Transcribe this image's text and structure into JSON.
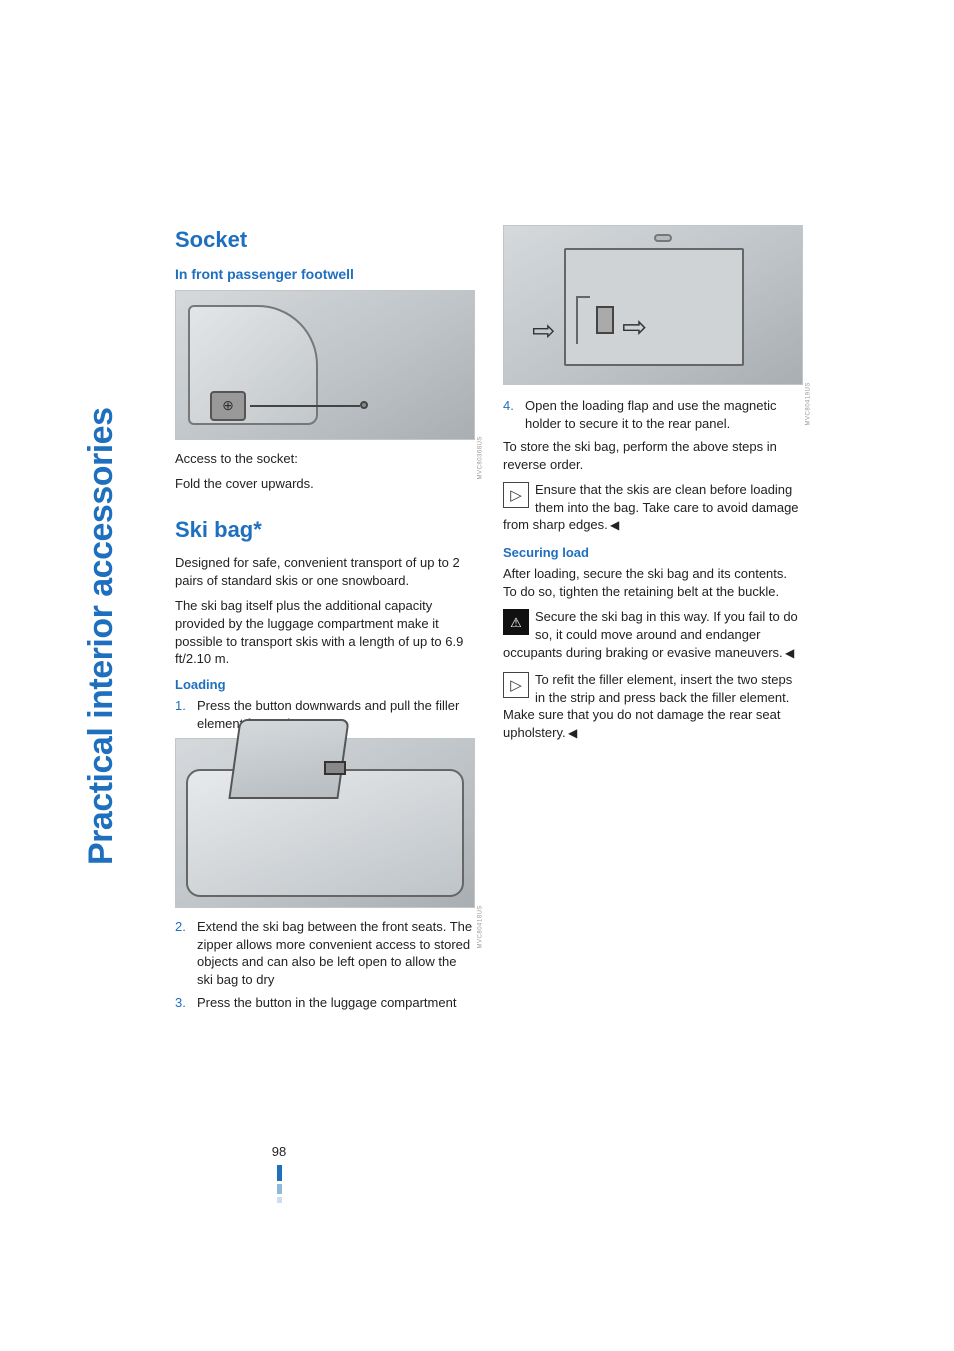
{
  "vtab": "Practical interior accessories",
  "page_number": "98",
  "col1": {
    "h_socket": "Socket",
    "sub_footwell": "In front passenger footwell",
    "fig_a_id": "MVC80368US",
    "socket_p1": "Access to the socket:",
    "socket_p2": "Fold the cover upwards.",
    "h_skibag": "Ski bag*",
    "ski_p1": "Designed for safe, convenient transport of up to 2 pairs of standard skis or one snowboard.",
    "ski_p2": "The ski bag itself plus the additional capacity provided by the luggage compartment make it possible to transport skis with a length of up to 6.9 ft/2.10 m.",
    "sub_loading": "Loading",
    "li1_num": "1.",
    "li1": "Press the button downwards and pull the filler element forwards",
    "fig_b_id": "MVC80418US",
    "li2_num": "2.",
    "li2": "Extend the ski bag between the front seats. The zipper allows more convenient access to stored objects and can also be left open to allow the ski bag to dry",
    "li3_num": "3.",
    "li3": "Press the button in the luggage compartment"
  },
  "col2": {
    "fig_c_id": "MVC80419US",
    "li4_num": "4.",
    "li4": "Open the loading flap and use the magnetic holder to secure it to the rear panel.",
    "store_p": "To store the ski bag, perform the above steps in reverse order.",
    "tip1": "Ensure that the skis are clean before loading them into the bag. Take care to avoid damage from sharp edges.",
    "sub_securing": "Securing load",
    "sec_p": "After loading, secure the ski bag and its contents. To do so, tighten the retaining belt at the buckle.",
    "warn": "Secure the ski bag in this way. If you fail to do so, it could move around and endanger occupants during braking or evasive maneuvers.",
    "tip2": "To refit the filler element, insert the two steps in the strip and press back the filler element. Make sure that you do not damage the rear seat upholstery."
  }
}
